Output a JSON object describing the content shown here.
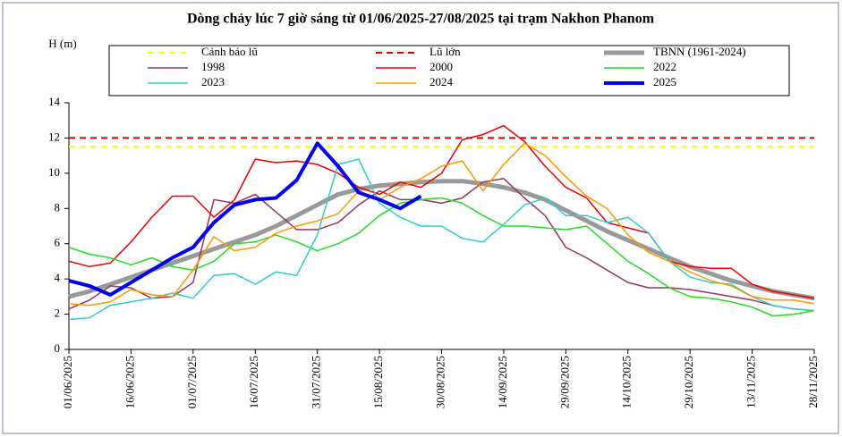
{
  "chart_data": {
    "type": "line",
    "title": "Dòng chảy lúc 7 giờ sáng từ 01/06/2025-27/08/2025 tại trạm Nakhon Phanom",
    "y_label": "H (m)",
    "legend": "top",
    "x": [
      "01/06/2025",
      "06/06/2025",
      "11/06/2025",
      "16/06/2025",
      "21/06/2025",
      "26/06/2025",
      "01/07/2025",
      "06/07/2025",
      "11/07/2025",
      "16/07/2025",
      "21/07/2025",
      "26/07/2025",
      "31/07/2025",
      "05/08/2025",
      "10/08/2025",
      "15/08/2025",
      "20/08/2025",
      "25/08/2025",
      "30/08/2025",
      "04/09/2025",
      "09/09/2025",
      "14/09/2025",
      "19/09/2025",
      "24/09/2025",
      "29/09/2025",
      "04/10/2025",
      "09/10/2025",
      "14/10/2025",
      "19/10/2025",
      "24/10/2025",
      "29/10/2025",
      "03/11/2025",
      "08/11/2025",
      "13/11/2025",
      "18/11/2025",
      "23/11/2025",
      "28/11/2025"
    ],
    "xlim": [
      "01/06/2025",
      "28/11/2025"
    ],
    "xticks": [
      "01/06/2025",
      "16/06/2025",
      "01/07/2025",
      "16/07/2025",
      "31/07/2025",
      "15/08/2025",
      "30/08/2025",
      "14/09/2025",
      "29/09/2025",
      "14/10/2025",
      "29/10/2025",
      "13/11/2025",
      "28/11/2025"
    ],
    "ylim": [
      0,
      14
    ],
    "yticks": [
      0,
      2,
      4,
      6,
      8,
      10,
      12,
      14
    ],
    "series": [
      {
        "name": "Cảnh báo lũ",
        "color": "#ffff00",
        "width": 2,
        "dash": true,
        "values": [
          11.5,
          11.5,
          11.5,
          11.5,
          11.5,
          11.5,
          11.5,
          11.5,
          11.5,
          11.5,
          11.5,
          11.5,
          11.5,
          11.5,
          11.5,
          11.5,
          11.5,
          11.5,
          11.5,
          11.5,
          11.5,
          11.5,
          11.5,
          11.5,
          11.5,
          11.5,
          11.5,
          11.5,
          11.5,
          11.5,
          11.5,
          11.5,
          11.5,
          11.5,
          11.5,
          11.5,
          11.5
        ]
      },
      {
        "name": "Lũ lớn",
        "color": "#e00000",
        "width": 2,
        "dash": true,
        "values": [
          12,
          12,
          12,
          12,
          12,
          12,
          12,
          12,
          12,
          12,
          12,
          12,
          12,
          12,
          12,
          12,
          12,
          12,
          12,
          12,
          12,
          12,
          12,
          12,
          12,
          12,
          12,
          12,
          12,
          12,
          12,
          12,
          12,
          12,
          12,
          12,
          12
        ]
      },
      {
        "name": "TBNN (1961-2024)",
        "color": "#999999",
        "width": 5,
        "dash": false,
        "values": [
          3.0,
          3.3,
          3.7,
          4.1,
          4.5,
          4.9,
          5.3,
          5.7,
          6.1,
          6.5,
          7.0,
          7.6,
          8.2,
          8.8,
          9.1,
          9.3,
          9.4,
          9.5,
          9.55,
          9.55,
          9.4,
          9.2,
          8.9,
          8.5,
          7.9,
          7.3,
          6.7,
          6.2,
          5.7,
          5.2,
          4.7,
          4.3,
          3.9,
          3.6,
          3.3,
          3.1,
          2.9
        ]
      },
      {
        "name": "1998",
        "color": "#993366",
        "width": 1.5,
        "dash": false,
        "values": [
          2.3,
          2.8,
          3.6,
          3.5,
          2.9,
          3.0,
          3.8,
          8.5,
          8.3,
          8.8,
          7.8,
          6.8,
          6.8,
          7.2,
          8.2,
          9.0,
          8.5,
          8.5,
          8.3,
          8.6,
          9.5,
          9.7,
          8.6,
          7.6,
          5.8,
          5.2,
          4.5,
          3.8,
          3.5,
          3.5,
          3.4,
          3.2,
          3.0,
          2.8,
          2.5,
          2.3,
          2.2
        ]
      },
      {
        "name": "2000",
        "color": "#ee0000",
        "width": 1.5,
        "dash": false,
        "values": [
          5.0,
          4.7,
          4.9,
          6.1,
          7.5,
          8.7,
          8.7,
          7.5,
          8.5,
          10.8,
          10.6,
          10.7,
          10.5,
          10.0,
          9.2,
          8.8,
          9.5,
          9.2,
          10.0,
          11.9,
          12.2,
          12.7,
          11.8,
          10.4,
          9.2,
          8.6,
          7.2,
          6.9,
          6.6,
          5.0,
          4.7,
          4.6,
          4.6,
          3.7,
          3.3,
          3.1,
          2.9
        ]
      },
      {
        "name": "2022",
        "color": "#22dd22",
        "width": 1.5,
        "dash": false,
        "values": [
          5.8,
          5.4,
          5.2,
          4.8,
          5.2,
          4.7,
          4.5,
          5.0,
          6.0,
          6.1,
          6.5,
          6.1,
          5.6,
          6.0,
          6.6,
          7.6,
          8.3,
          8.5,
          8.6,
          8.3,
          7.6,
          7.0,
          7.0,
          6.9,
          6.8,
          7.0,
          6.0,
          5.0,
          4.3,
          3.5,
          3.0,
          2.9,
          2.7,
          2.4,
          1.9,
          2.0,
          2.2
        ]
      },
      {
        "name": "2023",
        "color": "#33cccc",
        "width": 1.5,
        "dash": false,
        "values": [
          1.7,
          1.8,
          2.5,
          2.7,
          2.9,
          3.2,
          2.9,
          4.2,
          4.3,
          3.7,
          4.4,
          4.2,
          6.5,
          10.5,
          10.8,
          8.3,
          7.5,
          7.0,
          7.0,
          6.3,
          6.1,
          7.1,
          8.2,
          8.6,
          7.6,
          7.6,
          7.2,
          7.5,
          6.6,
          5.0,
          4.1,
          3.8,
          3.7,
          3.0,
          2.5,
          2.3,
          2.2
        ]
      },
      {
        "name": "2024",
        "color": "#ff9900",
        "width": 1.5,
        "dash": false,
        "values": [
          2.6,
          2.5,
          2.7,
          3.4,
          3.1,
          3.0,
          4.5,
          6.4,
          5.6,
          5.8,
          6.6,
          7.0,
          7.3,
          7.7,
          9.0,
          8.5,
          9.2,
          9.7,
          10.4,
          10.7,
          9.0,
          10.5,
          11.7,
          11.0,
          9.8,
          8.7,
          8.0,
          6.5,
          5.5,
          5.0,
          4.4,
          3.9,
          3.6,
          3.0,
          2.8,
          2.8,
          2.6
        ]
      },
      {
        "name": "2025",
        "color": "#0000ee",
        "width": 4,
        "dash": false,
        "values": [
          3.9,
          3.6,
          3.1,
          3.8,
          4.5,
          5.2,
          5.8,
          7.2,
          8.2,
          8.5,
          8.6,
          9.6,
          11.7,
          10.4,
          8.9,
          8.5,
          8.0,
          8.7,
          null,
          null,
          null,
          null,
          null,
          null,
          null,
          null,
          null,
          null,
          null,
          null,
          null,
          null,
          null,
          null,
          null,
          null,
          null
        ]
      }
    ]
  }
}
